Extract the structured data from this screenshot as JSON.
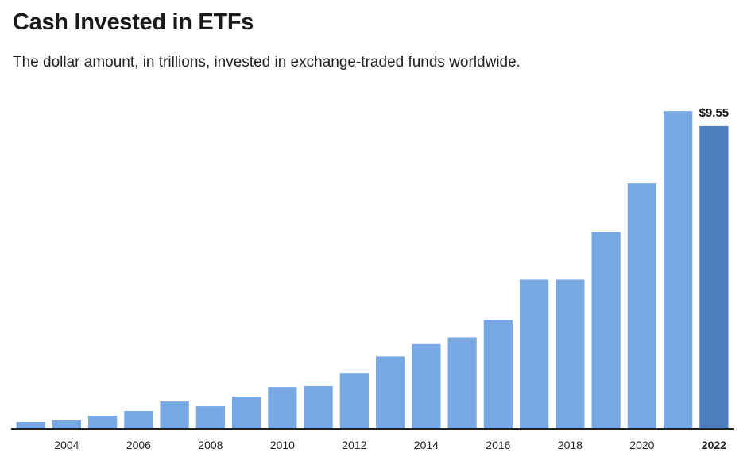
{
  "title": "Cash Invested in ETFs",
  "subtitle": "The dollar amount, in trillions, invested in exchange-traded funds worldwide.",
  "chart_data": {
    "type": "bar",
    "title": "Cash Invested in ETFs",
    "subtitle": "The dollar amount, in trillions, invested in exchange-traded funds worldwide.",
    "xlabel": "",
    "ylabel": "",
    "categories": [
      "2003",
      "2004",
      "2005",
      "2006",
      "2007",
      "2008",
      "2009",
      "2010",
      "2011",
      "2012",
      "2013",
      "2014",
      "2015",
      "2016",
      "2017",
      "2018",
      "2019",
      "2020",
      "2021",
      "2022"
    ],
    "tick_labels": [
      "2004",
      "2006",
      "2008",
      "2010",
      "2012",
      "2014",
      "2016",
      "2018",
      "2020",
      "2022"
    ],
    "values": [
      0.2,
      0.25,
      0.4,
      0.55,
      0.85,
      0.7,
      1.0,
      1.3,
      1.33,
      1.75,
      2.27,
      2.66,
      2.87,
      3.42,
      4.7,
      4.7,
      6.2,
      7.74,
      10.02,
      9.55
    ],
    "highlight_category": "2022",
    "highlight_label": "$9.55",
    "ylim": [
      0,
      10.1
    ],
    "grid": false,
    "legend": "none",
    "colors": {
      "bar": "#78a8e3",
      "highlight": "#4a7fbb",
      "axis": "#222222"
    }
  }
}
